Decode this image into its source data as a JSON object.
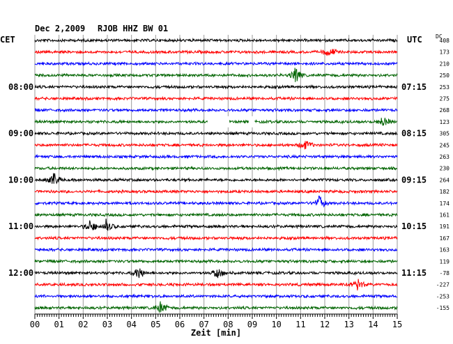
{
  "header": {
    "date": "Dec 2,2009",
    "station": "RJOB HHZ BW 01",
    "left_tz": "CET",
    "right_tz": "UTC",
    "dc_label": "DC"
  },
  "footer": {
    "xlabel": "Zeit [min]"
  },
  "chart_data": {
    "type": "line",
    "title": "Dec 2,2009  RJOB HHZ BW 01",
    "xlabel": "Zeit [min]",
    "ylabel": "",
    "xlim": [
      0,
      15
    ],
    "x_ticks": [
      "00",
      "01",
      "02",
      "03",
      "04",
      "05",
      "06",
      "07",
      "08",
      "09",
      "10",
      "11",
      "12",
      "13",
      "14",
      "15"
    ],
    "grid": "vertical lines every minute",
    "trace_colors": [
      "#000000",
      "#ff0000",
      "#0000ff",
      "#006400"
    ],
    "left_time_labels": [
      "08:00",
      "09:00",
      "10:00",
      "11:00",
      "12:00"
    ],
    "right_time_labels": [
      "07:15",
      "08:15",
      "09:15",
      "10:15",
      "11:15"
    ],
    "time_label_rows": [
      4,
      8,
      12,
      16,
      20
    ],
    "dc_offsets": [
      "408",
      "173",
      "210",
      "250",
      "253",
      "275",
      "268",
      "123",
      "305",
      "245",
      "263",
      "230",
      "264",
      "182",
      "174",
      "161",
      "191",
      "167",
      "163",
      "119",
      "-78",
      "-227",
      "-253",
      "-155"
    ],
    "notable_events": [
      {
        "row": 1,
        "minute": 12.2
      },
      {
        "row": 3,
        "minute": 10.8
      },
      {
        "row": 7,
        "minute": 14.4
      },
      {
        "row": 9,
        "minute": 11.2
      },
      {
        "row": 12,
        "minute": 0.8
      },
      {
        "row": 14,
        "minute": 11.8
      },
      {
        "row": 16,
        "minute": 2.3
      },
      {
        "row": 16,
        "minute": 3.0
      },
      {
        "row": 20,
        "minute": 4.3
      },
      {
        "row": 20,
        "minute": 7.6
      },
      {
        "row": 21,
        "minute": 13.4
      },
      {
        "row": 23,
        "minute": 5.2
      }
    ],
    "data_gaps": [
      {
        "row": 7,
        "from_minute": 7.15,
        "to_minute": 8.05
      },
      {
        "row": 7,
        "from_minute": 8.85,
        "to_minute": 9.1
      }
    ]
  }
}
